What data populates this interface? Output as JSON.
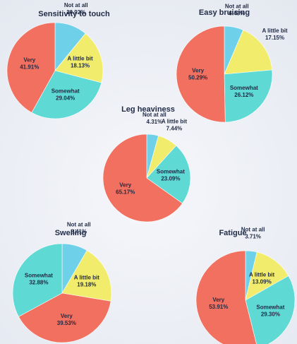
{
  "chart_data": [
    {
      "type": "pie",
      "title": "Sensitivity to touch",
      "categories": [
        "Not at all",
        "A little bit",
        "Somewhat",
        "Very"
      ],
      "values": [
        10.92,
        18.13,
        29.04,
        41.91
      ],
      "value_labels": [
        "10.92%",
        "18.13%",
        "29.04%",
        "41.91%"
      ],
      "colors": [
        "#6fd0ea",
        "#f2ec6c",
        "#5fd9d3",
        "#f2705f"
      ]
    },
    {
      "type": "pie",
      "title": "Easy bruising",
      "categories": [
        "Not at all",
        "A little bit",
        "Somewhat",
        "Very"
      ],
      "values": [
        6.43,
        17.15,
        26.12,
        50.29
      ],
      "value_labels": [
        "6.43%",
        "17.15%",
        "26.12%",
        "50.29%"
      ],
      "colors": [
        "#6fd0ea",
        "#f2ec6c",
        "#5fd9d3",
        "#f2705f"
      ]
    },
    {
      "type": "pie",
      "title": "Leg heaviness",
      "categories": [
        "Not at all",
        "A little bit",
        "Somewhat",
        "Very"
      ],
      "values": [
        4.31,
        7.44,
        23.09,
        65.17
      ],
      "value_labels": [
        "4.31%",
        "7.44%",
        "23.09%",
        "65.17%"
      ],
      "colors": [
        "#6fd0ea",
        "#f2ec6c",
        "#5fd9d3",
        "#f2705f"
      ]
    },
    {
      "type": "pie",
      "title": "Swelling",
      "categories": [
        "Not at all",
        "A little bit",
        "Very",
        "Somewhat"
      ],
      "values": [
        8.41,
        19.18,
        39.53,
        32.88
      ],
      "value_labels": [
        "8.41%",
        "19.18%",
        "39.53%",
        "32.88%"
      ],
      "colors": [
        "#6fd0ea",
        "#f2ec6c",
        "#f2705f",
        "#5fd9d3"
      ]
    },
    {
      "type": "pie",
      "title": "Fatigue",
      "categories": [
        "Not at all",
        "A little bit",
        "Somewhat",
        "Very"
      ],
      "values": [
        3.71,
        13.09,
        29.3,
        53.91
      ],
      "value_labels": [
        "3.71%",
        "13.09%",
        "29.30%",
        "53.91%"
      ],
      "colors": [
        "#6fd0ea",
        "#f2ec6c",
        "#5fd9d3",
        "#f2705f"
      ]
    }
  ]
}
